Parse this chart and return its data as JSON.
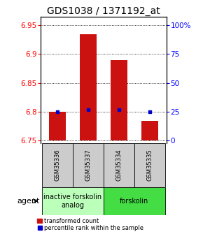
{
  "title": "GDS1038 / 1371192_at",
  "samples": [
    "GSM35336",
    "GSM35337",
    "GSM35334",
    "GSM35335"
  ],
  "bar_values": [
    6.8,
    6.935,
    6.89,
    6.783
  ],
  "percentile_values": [
    6.8,
    6.803,
    6.803,
    6.8
  ],
  "baseline": 6.75,
  "ylim_left": [
    6.745,
    6.965
  ],
  "yticks_left": [
    6.75,
    6.8,
    6.85,
    6.9,
    6.95
  ],
  "yticks_right": [
    0,
    25,
    50,
    75,
    100
  ],
  "yticks_right_vals": [
    6.75,
    6.8,
    6.85,
    6.9,
    6.95
  ],
  "bar_color": "#cc1111",
  "percentile_color": "#0000cc",
  "agent_groups": [
    {
      "label": "inactive forskolin\nanalog",
      "indices": [
        0,
        1
      ],
      "bg_color": "#bbffbb"
    },
    {
      "label": "forskolin",
      "indices": [
        2,
        3
      ],
      "bg_color": "#44dd44"
    }
  ],
  "legend_red_label": "transformed count",
  "legend_blue_label": "percentile rank within the sample",
  "agent_label": "agent",
  "title_fontsize": 10,
  "tick_fontsize": 7.5,
  "sample_fontsize": 6,
  "agent_fontsize": 7,
  "legend_fontsize": 6,
  "bar_width": 0.55
}
